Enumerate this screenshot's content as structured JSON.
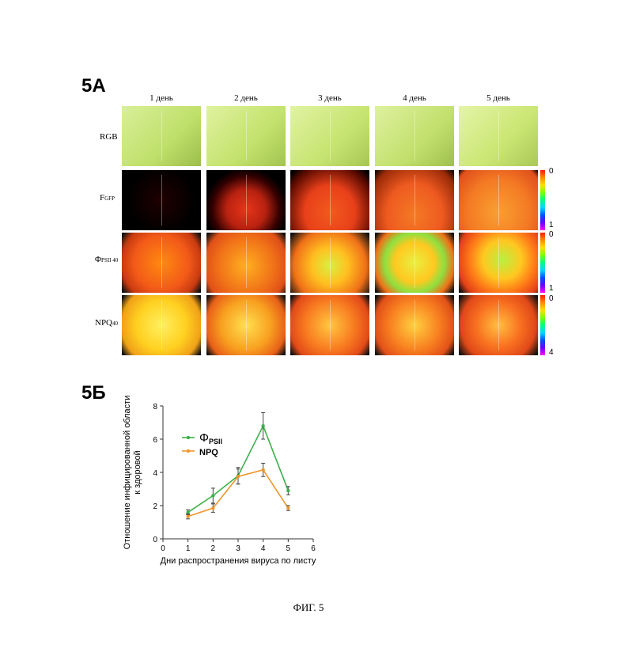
{
  "panel_a": {
    "label": "5A",
    "days": [
      "1 день",
      "2 день",
      "3 день",
      "4 день",
      "5 день"
    ],
    "rows": [
      {
        "main": "RGB",
        "sub": ""
      },
      {
        "main": "F",
        "sub": "GFP"
      },
      {
        "main": "Φ",
        "sub": "PSII 40"
      },
      {
        "main": "NPQ",
        "sub": "40"
      }
    ],
    "colorbars": [
      {
        "top": "0",
        "bottom": "1"
      },
      {
        "top": "0",
        "bottom": "1"
      },
      {
        "top": "0",
        "bottom": "4"
      }
    ]
  },
  "panel_b": {
    "label": "5Б"
  },
  "chart_data": {
    "type": "line",
    "xlabel": "Дни распространения вируса по листу",
    "ylabel": "Отношение инфицированной области к здоровой",
    "xlim": [
      0,
      6
    ],
    "ylim": [
      0,
      8
    ],
    "xticks": [
      "0",
      "1",
      "2",
      "3",
      "4",
      "5",
      "6"
    ],
    "yticks": [
      "0",
      "2",
      "4",
      "6",
      "8"
    ],
    "legend_position": "top-left",
    "series": [
      {
        "name": "ΦPSII",
        "legend_main": "Φ",
        "legend_sub": "PSII",
        "color": "#3db14a",
        "x": [
          1,
          2,
          3,
          4,
          5
        ],
        "y": [
          1.6,
          2.6,
          3.8,
          6.8,
          2.9
        ],
        "err": [
          0.15,
          0.45,
          0.5,
          0.8,
          0.25
        ]
      },
      {
        "name": "NPQ",
        "legend_main": "NPQ",
        "legend_sub": "",
        "color": "#f0962d",
        "x": [
          1,
          2,
          3,
          4,
          5
        ],
        "y": [
          1.35,
          1.85,
          3.75,
          4.15,
          1.85
        ],
        "err": [
          0.15,
          0.25,
          0.45,
          0.4,
          0.15
        ]
      }
    ]
  },
  "caption": "ФИГ. 5"
}
